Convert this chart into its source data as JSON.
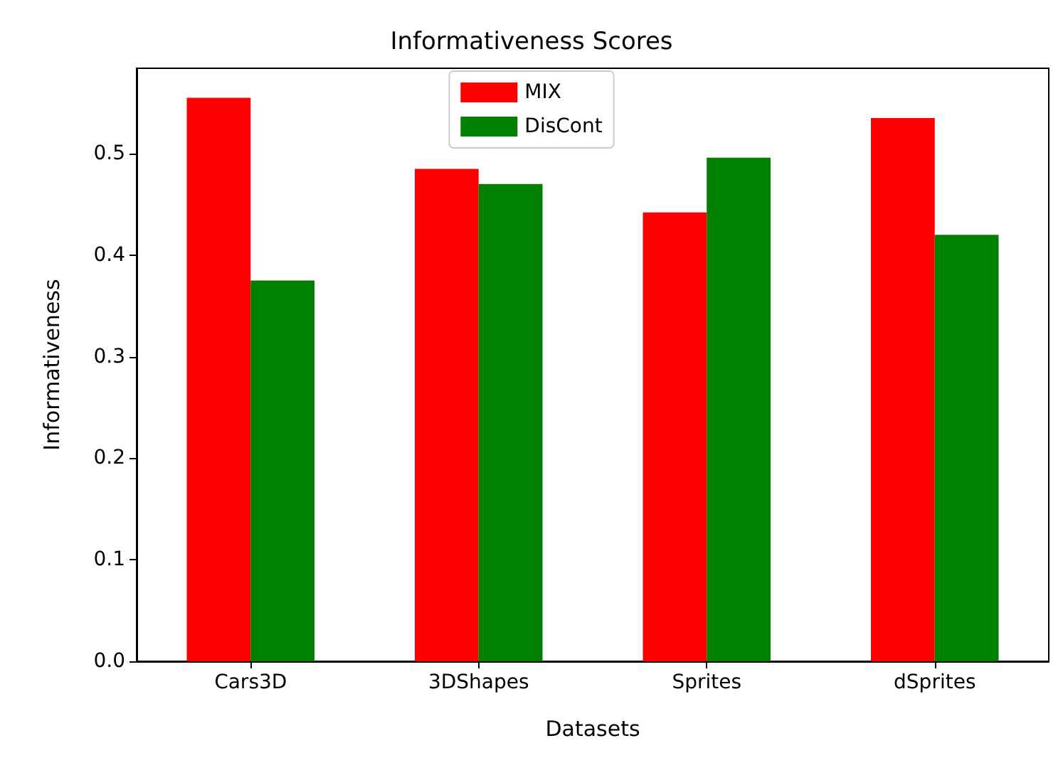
{
  "chart_data": {
    "type": "bar",
    "title": "Informativeness Scores",
    "xlabel": "Datasets",
    "ylabel": "Informativeness",
    "categories": [
      "Cars3D",
      "3DShapes",
      "Sprites",
      "dSprites"
    ],
    "series": [
      {
        "name": "MIX",
        "color": "#ff0000",
        "values": [
          0.555,
          0.485,
          0.442,
          0.535
        ]
      },
      {
        "name": "DisCont",
        "color": "#008000",
        "values": [
          0.375,
          0.47,
          0.496,
          0.42
        ]
      }
    ],
    "ylim": [
      0,
      0.584
    ],
    "yticks": [
      {
        "value": 0,
        "label": "0.0"
      },
      {
        "value": 0.1,
        "label": "0.1"
      },
      {
        "value": 0.2,
        "label": "0.2"
      },
      {
        "value": 0.3,
        "label": "0.3"
      },
      {
        "value": 0.4,
        "label": "0.4"
      },
      {
        "value": 0.5,
        "label": "0.5"
      }
    ],
    "grid": false,
    "legend": "top"
  }
}
